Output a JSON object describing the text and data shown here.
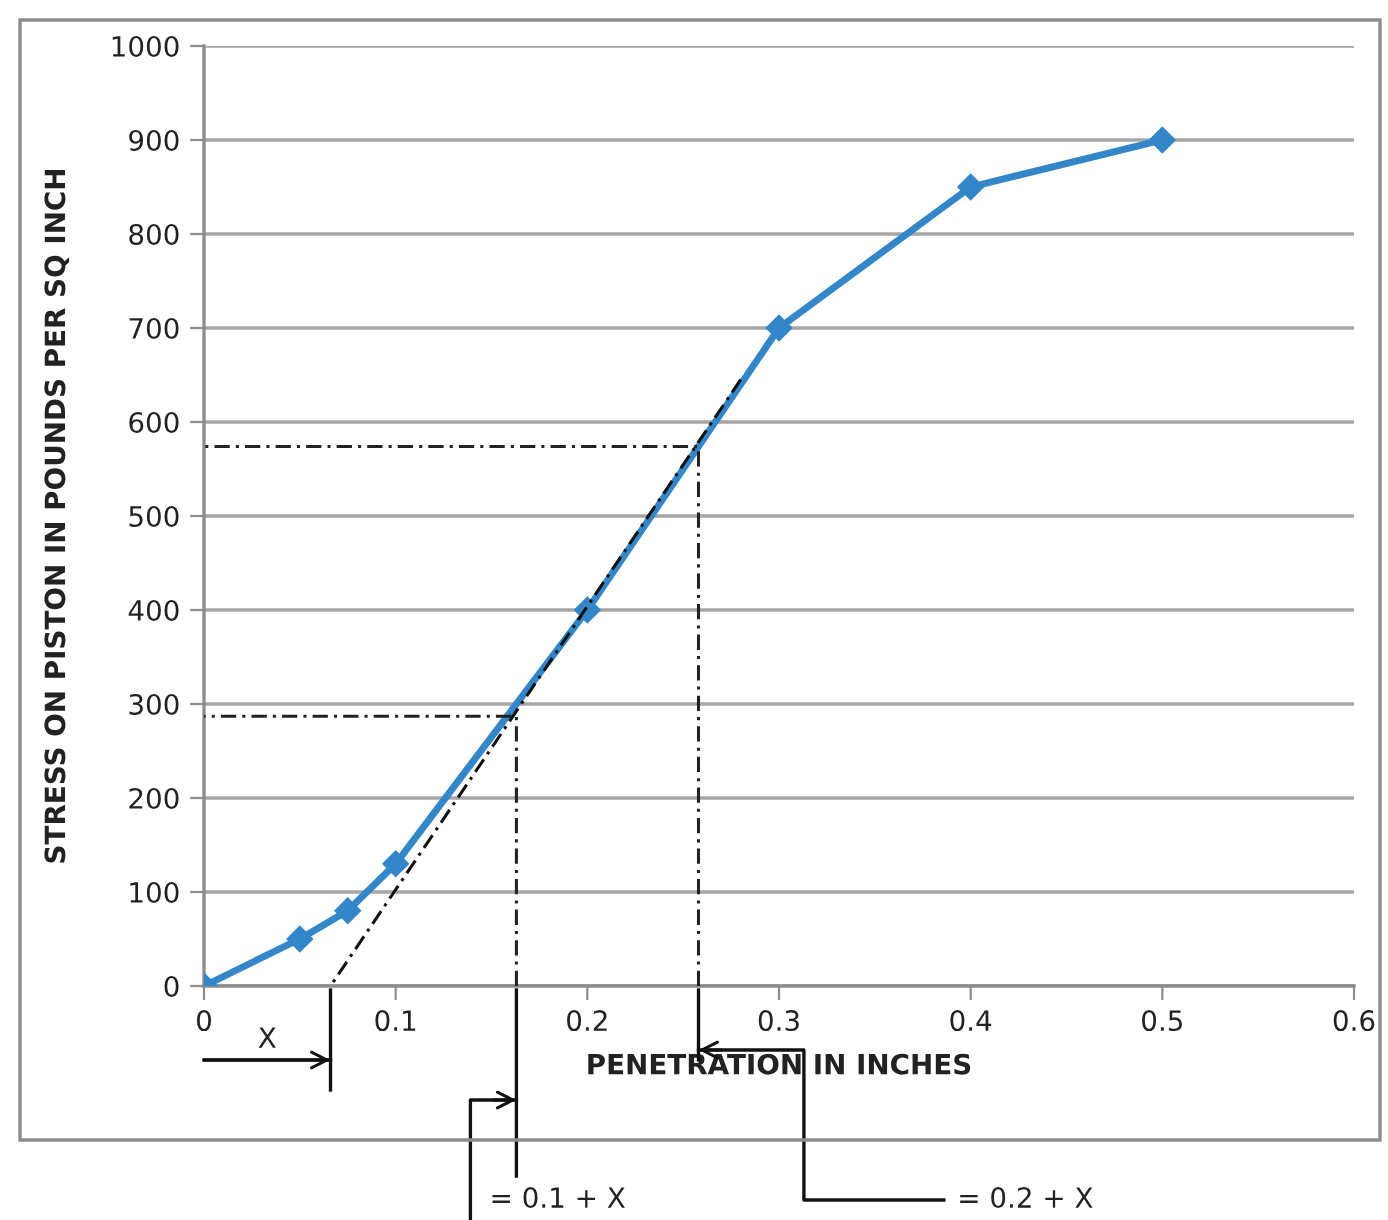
{
  "chart_data": {
    "type": "line",
    "xlabel": "PENETRATION IN INCHES",
    "ylabel": "STRESS ON PISTON IN POUNDS PER SQ INCH",
    "xlim": [
      0,
      0.6
    ],
    "xticks": [
      0,
      0.1,
      0.2,
      0.3,
      0.4,
      0.5,
      0.6
    ],
    "ylim": [
      0,
      1000
    ],
    "yticks": [
      0,
      100,
      200,
      300,
      400,
      500,
      600,
      700,
      800,
      900,
      1000
    ],
    "grid": "y",
    "marker": "diamond",
    "line_style": "solid",
    "series": [
      {
        "color": "#3386c8",
        "x": [
          0,
          0.05,
          0.075,
          0.1,
          0.2,
          0.3,
          0.4,
          0.5
        ],
        "values": [
          0,
          50,
          80,
          130,
          400,
          700,
          850,
          900
        ]
      },
      {
        "type": "line",
        "color": "#111111",
        "marker": "none",
        "line_style": "dashed",
        "x": [
          0.28,
          0.066
        ],
        "values": [
          645,
          0
        ]
      },
      {
        "type": "line",
        "color": "#222222",
        "marker": "none",
        "line_style": "dashed",
        "x": [
          0.163,
          0.163,
          0
        ],
        "values": [
          0,
          287,
          287
        ]
      },
      {
        "type": "line",
        "color": "#222222",
        "marker": "none",
        "line_style": "dashed",
        "x": [
          0.258,
          0.258,
          0
        ],
        "values": [
          0,
          574,
          574
        ]
      }
    ],
    "annotations": [
      "X",
      "= 0.1 + X",
      "= 0.2 + X"
    ]
  }
}
